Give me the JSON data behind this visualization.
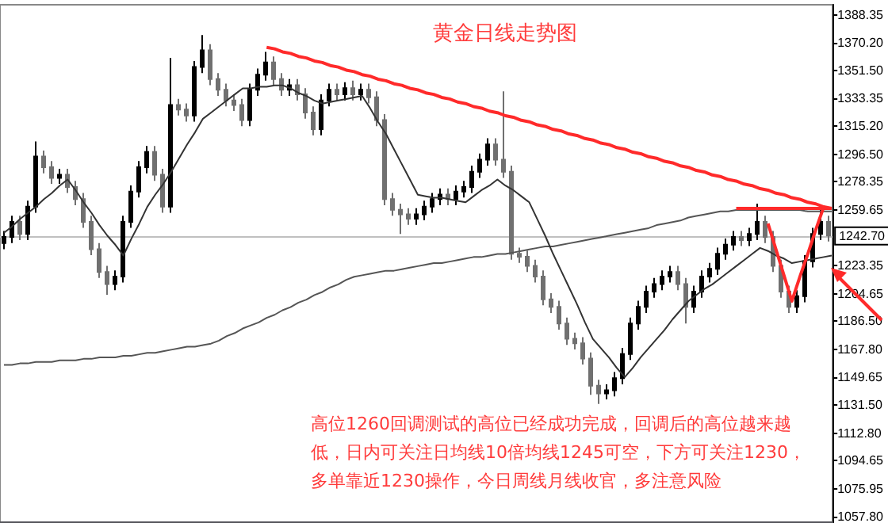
{
  "chart_data": [
    {
      "type": "candlestick",
      "title": "黄金日线走势图",
      "colors": [
        "#000000",
        "#000000",
        "#707070",
        "#000000",
        "#000000",
        "#707070",
        "#707070",
        "#000000",
        "#707070",
        "#707070",
        "#707070",
        "#707070",
        "#707070",
        "#707070",
        "#000000",
        "#000000",
        "#000000",
        "#000000",
        "#000000",
        "#707070",
        "#707070",
        "#000000",
        "#707070",
        "#707070",
        "#000000",
        "#000000",
        "#707070",
        "#707070",
        "#707070",
        "#707070",
        "#707070",
        "#000000",
        "#000000",
        "#000000",
        "#707070",
        "#707070",
        "#000000",
        "#707070",
        "#707070",
        "#707070",
        "#000000",
        "#000000",
        "#707070",
        "#000000",
        "#707070",
        "#000000",
        "#707070",
        "#707070",
        "#707070",
        "#707070",
        "#707070",
        "#707070",
        "#000000",
        "#000000",
        "#000000",
        "#000000",
        "#707070",
        "#000000",
        "#000000",
        "#000000",
        "#000000",
        "#000000",
        "#707070",
        "#707070",
        "#707070",
        "#707070",
        "#707070",
        "#707070",
        "#707070",
        "#707070",
        "#707070",
        "#707070",
        "#707070",
        "#707070",
        "#707070",
        "#707070",
        "#000000",
        "#000000",
        "#000000",
        "#000000",
        "#000000",
        "#000000",
        "#000000",
        "#000000",
        "#000000",
        "#707070",
        "#707070",
        "#000000",
        "#000000",
        "#000000",
        "#000000",
        "#000000",
        "#000000",
        "#707070",
        "#000000",
        "#000000",
        "#707070",
        "#707070",
        "#707070",
        "#707070",
        "#000000",
        "#000000",
        "#000000",
        "#000000",
        "#707070"
      ],
      "categories": [
        null,
        null,
        null,
        null,
        null,
        null,
        null,
        null,
        null,
        null,
        null,
        null,
        null,
        null,
        null,
        null,
        null,
        null,
        null,
        null,
        null,
        null,
        null,
        null,
        null,
        null,
        null,
        null,
        null,
        null,
        null,
        null,
        null,
        null,
        null,
        null,
        null,
        null,
        null,
        null,
        null,
        null,
        null,
        null,
        null,
        null,
        null,
        null,
        null,
        null,
        null,
        null,
        null,
        null,
        null,
        null,
        null,
        null,
        null,
        null,
        null,
        null,
        null,
        null,
        null,
        null,
        null,
        null,
        null,
        null,
        null,
        null,
        null,
        null,
        null,
        null,
        null,
        null,
        null,
        null,
        null,
        null,
        null,
        null,
        null,
        null,
        null,
        null,
        null,
        null,
        null,
        null,
        null,
        null,
        null,
        null,
        null,
        null,
        null,
        null,
        null,
        null,
        null,
        null,
        null
      ],
      "ohlc": [
        [
          1238,
          1246,
          1234,
          1242
        ],
        [
          1242,
          1256,
          1238,
          1252
        ],
        [
          1252,
          1256,
          1240,
          1244
        ],
        [
          1244,
          1266,
          1240,
          1262
        ],
        [
          1262,
          1305,
          1258,
          1295
        ],
        [
          1295,
          1299,
          1284,
          1288
        ],
        [
          1288,
          1292,
          1277,
          1281
        ],
        [
          1281,
          1287,
          1277,
          1283
        ],
        [
          1283,
          1287,
          1271,
          1275
        ],
        [
          1275,
          1279,
          1263,
          1267
        ],
        [
          1267,
          1271,
          1248,
          1252
        ],
        [
          1252,
          1256,
          1230,
          1234
        ],
        [
          1234,
          1238,
          1215,
          1219
        ],
        [
          1219,
          1223,
          1204,
          1211
        ],
        [
          1211,
          1220,
          1207,
          1216
        ],
        [
          1216,
          1256,
          1212,
          1252
        ],
        [
          1252,
          1276,
          1248,
          1272
        ],
        [
          1272,
          1292,
          1268,
          1288
        ],
        [
          1288,
          1302,
          1284,
          1298
        ],
        [
          1298,
          1302,
          1279,
          1283
        ],
        [
          1283,
          1287,
          1258,
          1262
        ],
        [
          1262,
          1360,
          1258,
          1329
        ],
        [
          1329,
          1333,
          1322,
          1326
        ],
        [
          1326,
          1330,
          1318,
          1322
        ],
        [
          1322,
          1358,
          1318,
          1354
        ],
        [
          1354,
          1375,
          1350,
          1365
        ],
        [
          1365,
          1369,
          1342,
          1346
        ],
        [
          1346,
          1350,
          1335,
          1339
        ],
        [
          1339,
          1343,
          1328,
          1332
        ],
        [
          1332,
          1336,
          1325,
          1329
        ],
        [
          1329,
          1333,
          1315,
          1319
        ],
        [
          1319,
          1343,
          1315,
          1339
        ],
        [
          1339,
          1353,
          1335,
          1349
        ],
        [
          1349,
          1364,
          1345,
          1357
        ],
        [
          1357,
          1361,
          1342,
          1346
        ],
        [
          1346,
          1350,
          1335,
          1339
        ],
        [
          1339,
          1346,
          1335,
          1342
        ],
        [
          1342,
          1346,
          1332,
          1336
        ],
        [
          1336,
          1340,
          1320,
          1324
        ],
        [
          1324,
          1328,
          1309,
          1313
        ],
        [
          1313,
          1336,
          1309,
          1332
        ],
        [
          1332,
          1343,
          1328,
          1339
        ],
        [
          1339,
          1343,
          1332,
          1336
        ],
        [
          1336,
          1344,
          1332,
          1340
        ],
        [
          1340,
          1345,
          1332,
          1336
        ],
        [
          1336,
          1343,
          1332,
          1339
        ],
        [
          1339,
          1343,
          1330,
          1334
        ],
        [
          1334,
          1338,
          1315,
          1319
        ],
        [
          1319,
          1323,
          1263,
          1267
        ],
        [
          1267,
          1271,
          1256,
          1260
        ],
        [
          1260,
          1264,
          1244,
          1257
        ],
        [
          1257,
          1261,
          1250,
          1254
        ],
        [
          1254,
          1261,
          1250,
          1257
        ],
        [
          1257,
          1266,
          1253,
          1262
        ],
        [
          1262,
          1271,
          1258,
          1267
        ],
        [
          1267,
          1274,
          1263,
          1270
        ],
        [
          1270,
          1274,
          1263,
          1267
        ],
        [
          1267,
          1276,
          1263,
          1272
        ],
        [
          1272,
          1279,
          1268,
          1275
        ],
        [
          1275,
          1289,
          1271,
          1285
        ],
        [
          1285,
          1297,
          1281,
          1293
        ],
        [
          1293,
          1307,
          1289,
          1303
        ],
        [
          1303,
          1307,
          1289,
          1293
        ],
        [
          1293,
          1338,
          1281,
          1285
        ],
        [
          1285,
          1289,
          1227,
          1231
        ],
        [
          1231,
          1235,
          1225,
          1229
        ],
        [
          1229,
          1233,
          1219,
          1223
        ],
        [
          1223,
          1227,
          1212,
          1216
        ],
        [
          1216,
          1220,
          1197,
          1201
        ],
        [
          1201,
          1205,
          1192,
          1196
        ],
        [
          1196,
          1200,
          1181,
          1185
        ],
        [
          1185,
          1189,
          1171,
          1175
        ],
        [
          1175,
          1179,
          1168,
          1172
        ],
        [
          1172,
          1176,
          1158,
          1162
        ],
        [
          1162,
          1166,
          1138,
          1144
        ],
        [
          1144,
          1148,
          1132,
          1139
        ],
        [
          1139,
          1145,
          1135,
          1141
        ],
        [
          1141,
          1153,
          1137,
          1149
        ],
        [
          1149,
          1169,
          1145,
          1165
        ],
        [
          1165,
          1189,
          1161,
          1185
        ],
        [
          1185,
          1200,
          1181,
          1196
        ],
        [
          1196,
          1210,
          1192,
          1206
        ],
        [
          1206,
          1215,
          1202,
          1211
        ],
        [
          1211,
          1220,
          1207,
          1216
        ],
        [
          1216,
          1223,
          1212,
          1219
        ],
        [
          1219,
          1223,
          1207,
          1211
        ],
        [
          1211,
          1215,
          1185,
          1196
        ],
        [
          1196,
          1210,
          1192,
          1206
        ],
        [
          1206,
          1220,
          1202,
          1216
        ],
        [
          1216,
          1225,
          1212,
          1221
        ],
        [
          1221,
          1235,
          1217,
          1231
        ],
        [
          1231,
          1241,
          1227,
          1237
        ],
        [
          1237,
          1246,
          1233,
          1242
        ],
        [
          1242,
          1246,
          1236,
          1240
        ],
        [
          1240,
          1248,
          1236,
          1244
        ],
        [
          1244,
          1264,
          1240,
          1252
        ],
        [
          1252,
          1256,
          1238,
          1242
        ],
        [
          1242,
          1246,
          1219,
          1223
        ],
        [
          1223,
          1227,
          1202,
          1206
        ],
        [
          1206,
          1210,
          1192,
          1196
        ],
        [
          1196,
          1207,
          1192,
          1203
        ],
        [
          1203,
          1230,
          1199,
          1226
        ],
        [
          1226,
          1248,
          1222,
          1244
        ],
        [
          1244,
          1262,
          1240,
          1252
        ],
        [
          1252,
          1256,
          1239,
          1243
        ]
      ],
      "ylim": [
        1054,
        1395
      ],
      "yticks": [
        1388.35,
        {
          "value": 1370.2,
          "label": "1370.20"
        },
        {
          "value": 1351.5,
          "label": "1351.50"
        },
        1333.35,
        {
          "value": 1315.2,
          "label": "1315.20"
        },
        {
          "value": 1296.5,
          "label": "1296.50"
        },
        1278.35,
        1259.65,
        1223.35,
        1204.65,
        {
          "value": 1186.5,
          "label": "1186.50"
        },
        {
          "value": 1167.8,
          "label": "1167.80"
        },
        1149.65,
        {
          "value": 1131.5,
          "label": "1131.50"
        },
        {
          "value": 1112.8,
          "label": "1112.80"
        },
        1094.65,
        1075.95,
        {
          "value": 1057.8,
          "label": "1057.80"
        }
      ],
      "ref_lines": [
        {
          "axis": "y",
          "value": 1242.7,
          "label": "1242.70",
          "color": "#c0c0c0"
        }
      ],
      "annotations": [
        "高位1260回调测试的高位已经成功完成，回调后的高位越来越",
        "低，日内可关注日均线10倍均线1245可空，下方可关注1230，",
        "多单靠近1230操作，今日周线月线收官，多注意风险"
      ],
      "tick_labels": "y",
      "grid": false
    },
    {
      "type": "line",
      "ylim": [
        1054,
        1395
      ],
      "tick_labels": false,
      "line_style": "solid",
      "categories": [
        null,
        null,
        null,
        null,
        null,
        null,
        null,
        null,
        null,
        null,
        null,
        null,
        null,
        null,
        null,
        null,
        null,
        null,
        null,
        null,
        null,
        null,
        null,
        null,
        null,
        null,
        null,
        null,
        null,
        null,
        null,
        null,
        null,
        null,
        null,
        null,
        null,
        null,
        null,
        null,
        null,
        null,
        null,
        null,
        null,
        null,
        null,
        null,
        null,
        null,
        null,
        null,
        null,
        null,
        null,
        null,
        null,
        null,
        null,
        null,
        null,
        null,
        null,
        null,
        null,
        null,
        null,
        null,
        null,
        null,
        null,
        null,
        null,
        null,
        null,
        null,
        null,
        null,
        null,
        null,
        null,
        null,
        null,
        null,
        null,
        null,
        null,
        null,
        null,
        null,
        null,
        null,
        null,
        null,
        null,
        null,
        null,
        null,
        null,
        null,
        null,
        null,
        null,
        null,
        null
      ],
      "series": [
        {
          "color": "#555555",
          "values": [
            1158,
            1158,
            1159,
            1159,
            1160,
            1160,
            1160,
            1161,
            1161,
            1161,
            1162,
            1162,
            1163,
            1163,
            1163,
            1164,
            1164,
            1165,
            1166,
            1166,
            1167,
            1168,
            1169,
            1170,
            1170,
            1171,
            1172,
            1174,
            1177,
            1179,
            1182,
            1184,
            1186,
            1189,
            1191,
            1194,
            1196,
            1199,
            1201,
            1204,
            1206,
            1209,
            1211,
            1214,
            1216,
            1217,
            1218,
            1219,
            1220,
            1220,
            1221,
            1222,
            1223,
            1224,
            1225,
            1225,
            1226,
            1227,
            1228,
            1229,
            1229,
            1230,
            1231,
            1231,
            1232,
            1233,
            1234,
            1235,
            1236,
            1236,
            1237,
            1238,
            1239,
            1240,
            1241,
            1242,
            1243,
            1244,
            1245,
            1246,
            1247,
            1248,
            1250,
            1251,
            1252,
            1253,
            1255,
            1256,
            1257,
            1258,
            1259,
            1259,
            1260,
            1260,
            1260,
            1260,
            1260,
            1260,
            1260,
            1260,
            1260,
            1259,
            1259,
            1259,
            1259
          ]
        },
        {
          "color": "#333333",
          "values": [
            1245,
            1249,
            1254,
            1258,
            1262,
            1267,
            1271,
            1276,
            1280,
            1273,
            1265,
            1258,
            1250,
            1243,
            1237,
            1230,
            1241,
            1251,
            1262,
            1270,
            1277,
            1285,
            1294,
            1303,
            1311,
            1320,
            1324,
            1328,
            1332,
            1336,
            1340,
            1340,
            1341,
            1341,
            1342,
            1342,
            1340,
            1337,
            1335,
            1332,
            1330,
            1331,
            1332,
            1333,
            1334,
            1335,
            1327,
            1318,
            1310,
            1300,
            1290,
            1280,
            1270,
            1269,
            1268,
            1268,
            1267,
            1266,
            1265,
            1269,
            1273,
            1276,
            1280,
            1276,
            1273,
            1269,
            1265,
            1254,
            1243,
            1231,
            1220,
            1209,
            1198,
            1186,
            1175,
            1169,
            1163,
            1156,
            1150,
            1156,
            1163,
            1169,
            1175,
            1181,
            1188,
            1194,
            1200,
            1204,
            1208,
            1211,
            1215,
            1219,
            1223,
            1227,
            1231,
            1235,
            1233,
            1230,
            1228,
            1225,
            1226,
            1227,
            1228,
            1229,
            1230
          ]
        },
        {
          "color": "#ff2a2a",
          "values": [
            null,
            null,
            null,
            null,
            null,
            null,
            null,
            null,
            null,
            null,
            null,
            null,
            null,
            null,
            null,
            null,
            null,
            null,
            null,
            null,
            null,
            null,
            null,
            null,
            null,
            null,
            null,
            null,
            null,
            null,
            null,
            null,
            null,
            1367,
            1366,
            1364,
            1363,
            1361,
            1360,
            1358,
            1357,
            1355,
            1354,
            1352,
            1351,
            1349,
            1348,
            1346,
            1345,
            1343,
            1342,
            1340,
            1339,
            1337,
            1336,
            1334,
            1333,
            1331,
            1330,
            1328,
            1327,
            1325,
            1324,
            1322,
            1321,
            1319,
            1318,
            1316,
            1315,
            1313,
            1312,
            1310,
            1309,
            1307,
            1306,
            1304,
            1303,
            1301,
            1300,
            1298,
            1297,
            1295,
            1294,
            1292,
            1291,
            1289,
            1288,
            1286,
            1285,
            1283,
            1282,
            1280,
            1279,
            1277,
            1276,
            1274,
            1273,
            1271,
            1270,
            1268,
            1267,
            1265,
            1264,
            1262,
            1261
          ]
        },
        {
          "color": "#ff2a2a",
          "values": [
            null,
            null,
            null,
            null,
            null,
            null,
            null,
            null,
            null,
            null,
            null,
            null,
            null,
            null,
            null,
            null,
            null,
            null,
            null,
            null,
            null,
            null,
            null,
            null,
            null,
            null,
            null,
            null,
            null,
            null,
            null,
            null,
            null,
            null,
            null,
            null,
            null,
            null,
            null,
            null,
            null,
            null,
            null,
            null,
            null,
            null,
            null,
            null,
            null,
            null,
            null,
            null,
            null,
            null,
            null,
            null,
            null,
            null,
            null,
            null,
            null,
            null,
            null,
            null,
            null,
            null,
            null,
            null,
            null,
            null,
            null,
            null,
            null,
            null,
            null,
            null,
            null,
            null,
            null,
            null,
            null,
            null,
            null,
            null,
            null,
            null,
            null,
            null,
            null,
            null,
            null,
            null,
            1261,
            1261,
            1261,
            1261,
            1261,
            1261,
            1261,
            1261,
            1261,
            1261,
            1261,
            1261,
            1261
          ]
        },
        {
          "color": "#ff2a2a",
          "values": [
            null,
            null,
            null,
            null,
            null,
            null,
            null,
            null,
            null,
            null,
            null,
            null,
            null,
            null,
            null,
            null,
            null,
            null,
            null,
            null,
            null,
            null,
            null,
            null,
            null,
            null,
            null,
            null,
            null,
            null,
            null,
            null,
            null,
            null,
            null,
            null,
            null,
            null,
            null,
            null,
            null,
            null,
            null,
            null,
            null,
            null,
            null,
            null,
            null,
            null,
            null,
            null,
            null,
            null,
            null,
            null,
            null,
            null,
            null,
            null,
            null,
            null,
            null,
            null,
            null,
            null,
            null,
            null,
            null,
            null,
            null,
            null,
            null,
            null,
            null,
            null,
            null,
            null,
            null,
            null,
            null,
            null,
            null,
            null,
            null,
            null,
            null,
            null,
            null,
            null,
            null,
            null,
            null,
            null,
            null,
            null,
            1251,
            1234,
            1217,
            1200,
            1216,
            1231,
            1247,
            1262,
            null
          ]
        }
      ]
    }
  ]
}
